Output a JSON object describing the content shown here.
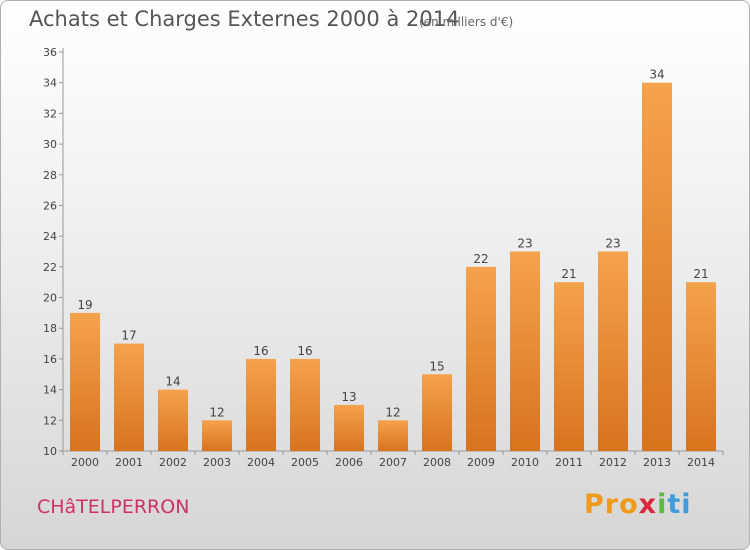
{
  "header": {
    "title": "Achats et Charges Externes 2000 à 2014",
    "subtitle": "(en milliers d'€)"
  },
  "footer": {
    "commune": "CHâTELPERRON",
    "logo": [
      "Pro",
      "x",
      "i",
      "ti"
    ]
  },
  "colors": {
    "bar_light": "#f5a24c",
    "bar_dark": "#d9731c",
    "axis": "#999999",
    "title": "#555555",
    "commune": "#d0306a"
  },
  "chart_data": {
    "type": "bar",
    "title": "Achats et Charges Externes 2000 à 2014",
    "xlabel": "",
    "ylabel": "",
    "categories": [
      "2000",
      "2001",
      "2002",
      "2003",
      "2004",
      "2005",
      "2006",
      "2007",
      "2008",
      "2009",
      "2010",
      "2011",
      "2012",
      "2013",
      "2014"
    ],
    "values": [
      19,
      17,
      14,
      12,
      16,
      16,
      13,
      12,
      15,
      22,
      23,
      21,
      23,
      34,
      21
    ],
    "ylim": [
      10,
      36
    ],
    "yticks": [
      10,
      12,
      14,
      16,
      18,
      20,
      22,
      24,
      26,
      28,
      30,
      32,
      34,
      36
    ],
    "grid": false,
    "data_labels": true
  }
}
